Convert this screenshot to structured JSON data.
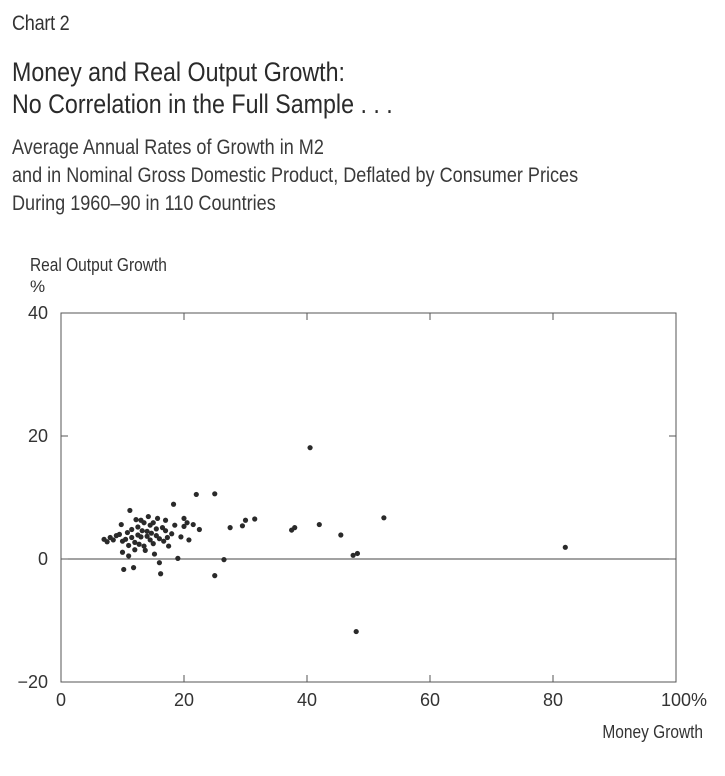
{
  "header": {
    "chart_label": "Chart 2",
    "title_lines": [
      "Money and Real Output Growth:",
      "No Correlation in the Full Sample . . ."
    ],
    "subtitle_lines": [
      "Average Annual Rates of Growth in M2",
      "and in Nominal Gross Domestic Product, Deflated by Consumer Prices",
      "During 1960–90 in 110 Countries"
    ]
  },
  "chart_data": {
    "type": "scatter",
    "ylabel": "Real Output Growth",
    "yunit": "%",
    "xlabel": "Money Growth",
    "xlim": [
      0,
      100
    ],
    "ylim": [
      -20,
      40
    ],
    "x_ticks": [
      "0",
      "20",
      "40",
      "60",
      "80",
      "100%"
    ],
    "y_ticks": [
      "40",
      "20",
      "0",
      "−20"
    ],
    "zero_line": true,
    "grid": false,
    "points": [
      [
        7,
        3.2
      ],
      [
        7.5,
        2.8
      ],
      [
        8,
        3.5
      ],
      [
        8.5,
        3.1
      ],
      [
        9,
        3.8
      ],
      [
        9.5,
        4
      ],
      [
        9.8,
        5.6
      ],
      [
        10,
        2.9
      ],
      [
        10,
        1.1
      ],
      [
        10.2,
        -1.7
      ],
      [
        10.5,
        3.2
      ],
      [
        10.8,
        4.3
      ],
      [
        11,
        0.5
      ],
      [
        11,
        2.2
      ],
      [
        11.2,
        7.9
      ],
      [
        11.5,
        3.5
      ],
      [
        11.5,
        4.8
      ],
      [
        11.8,
        -1.4
      ],
      [
        12,
        2.7
      ],
      [
        12,
        1.5
      ],
      [
        12.2,
        6.4
      ],
      [
        12.5,
        3.9
      ],
      [
        12.5,
        5.2
      ],
      [
        12.7,
        2.4
      ],
      [
        13,
        3.6
      ],
      [
        13,
        6.3
      ],
      [
        13.2,
        4.6
      ],
      [
        13.5,
        5.9
      ],
      [
        13.5,
        2.1
      ],
      [
        13.7,
        1.4
      ],
      [
        14,
        3.7
      ],
      [
        14,
        4.5
      ],
      [
        14.2,
        6.9
      ],
      [
        14.5,
        5.5
      ],
      [
        14.5,
        3.1
      ],
      [
        14.7,
        4.2
      ],
      [
        15,
        5.9
      ],
      [
        15,
        2.5
      ],
      [
        15.2,
        0.8
      ],
      [
        15.5,
        4.9
      ],
      [
        15.5,
        3.8
      ],
      [
        15.7,
        6.6
      ],
      [
        16,
        3.3
      ],
      [
        16,
        -0.6
      ],
      [
        16.2,
        -2.4
      ],
      [
        16.5,
        5.1
      ],
      [
        16.7,
        2.9
      ],
      [
        17,
        4.6
      ],
      [
        17,
        6.3
      ],
      [
        17.3,
        3.5
      ],
      [
        17.5,
        2.1
      ],
      [
        18,
        4.1
      ],
      [
        18.3,
        8.9
      ],
      [
        18.5,
        5.5
      ],
      [
        19,
        0.1
      ],
      [
        19.5,
        3.6
      ],
      [
        20,
        6.6
      ],
      [
        20,
        5.3
      ],
      [
        20.5,
        5.9
      ],
      [
        20.8,
        3.1
      ],
      [
        21.5,
        5.6
      ],
      [
        22,
        10.5
      ],
      [
        22.5,
        4.8
      ],
      [
        25,
        10.6
      ],
      [
        25,
        -2.7
      ],
      [
        26.5,
        -0.1
      ],
      [
        27.5,
        5.1
      ],
      [
        29.5,
        5.4
      ],
      [
        30,
        6.3
      ],
      [
        31.5,
        6.5
      ],
      [
        37.5,
        4.7
      ],
      [
        38,
        5.1
      ],
      [
        40.5,
        18.1
      ],
      [
        42,
        5.6
      ],
      [
        45.5,
        3.9
      ],
      [
        47.5,
        0.6
      ],
      [
        48.2,
        0.9
      ],
      [
        48,
        -11.8
      ],
      [
        52.5,
        6.7
      ],
      [
        82,
        1.9
      ]
    ]
  },
  "colors": {
    "text": "#2b2b2b",
    "axis": "#555555",
    "point": "#2a2a2a"
  }
}
